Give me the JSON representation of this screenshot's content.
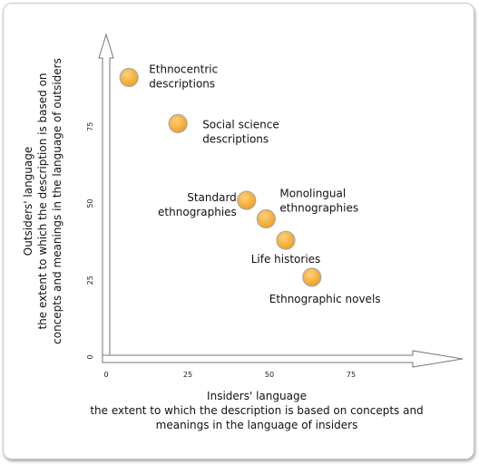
{
  "chart_data": {
    "type": "scatter",
    "xlabel": [
      "Insiders' language",
      "the extent to which the description is based on concepts and",
      "meanings in the language of insiders"
    ],
    "ylabel": [
      "Outsiders' language",
      "the extent to which the description is based on",
      "concepts and meanings in the language of outsiders"
    ],
    "xlim": [
      0,
      100
    ],
    "ylim": [
      0,
      100
    ],
    "xticks": [
      "0",
      "25",
      "50",
      "75"
    ],
    "yticks": [
      "0",
      "25",
      "50",
      "75"
    ],
    "grid": false,
    "marker_color": "#f5a623",
    "points": [
      {
        "x": 7,
        "y": 91,
        "label": [
          "Ethnocentric",
          "descriptions"
        ]
      },
      {
        "x": 22,
        "y": 76,
        "label": [
          "Social science",
          "descriptions"
        ]
      },
      {
        "x": 43,
        "y": 51,
        "label": [
          "Standard",
          "ethnographies"
        ]
      },
      {
        "x": 49,
        "y": 45,
        "label": [
          "Monolingual",
          "ethnographies"
        ]
      },
      {
        "x": 55,
        "y": 38,
        "label": [
          "Life histories"
        ]
      },
      {
        "x": 63,
        "y": 26,
        "label": [
          "Ethnographic novels"
        ]
      }
    ]
  }
}
